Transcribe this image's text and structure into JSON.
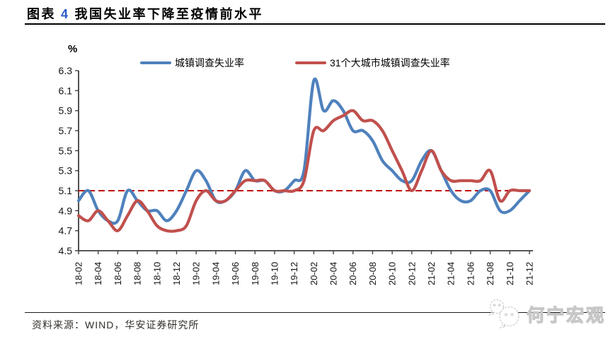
{
  "header": {
    "prefix": "图表",
    "number": "4",
    "title_rest": "我国失业率下降至疫情前水平"
  },
  "footer": {
    "source": "资料来源：WIND，华安证券研究所"
  },
  "watermark": {
    "text": "何宁宏观",
    "icon": "wechat-bubbles-icon"
  },
  "colors": {
    "series_blue": "#4F81BD",
    "series_red": "#C0504D",
    "reference_red": "#C00000",
    "title_number_blue": "#2A5CC8",
    "axis": "#404040"
  },
  "chart_data": {
    "type": "line",
    "title": "我国失业率下降至疫情前水平",
    "xlabel": "",
    "ylabel": "%",
    "ylim": [
      4.5,
      6.3
    ],
    "grid": false,
    "line_smoothing": true,
    "legend_position": "top",
    "y_ticks": [
      6.3,
      6.1,
      5.9,
      5.7,
      5.5,
      5.3,
      5.1,
      4.9,
      4.7,
      4.5
    ],
    "x_labels": [
      "18-02",
      "18-04",
      "18-06",
      "18-08",
      "18-10",
      "18-12",
      "19-02",
      "19-04",
      "19-06",
      "19-08",
      "19-10",
      "19-12",
      "20-02",
      "20-04",
      "20-06",
      "20-08",
      "20-10",
      "20-12",
      "21-02",
      "21-04",
      "21-06",
      "21-08",
      "21-10",
      "21-12"
    ],
    "x": [
      "18-02",
      "18-03",
      "18-04",
      "18-05",
      "18-06",
      "18-07",
      "18-08",
      "18-09",
      "18-10",
      "18-11",
      "18-12",
      "19-01",
      "19-02",
      "19-03",
      "19-04",
      "19-05",
      "19-06",
      "19-07",
      "19-08",
      "19-09",
      "19-10",
      "19-11",
      "19-12",
      "20-01",
      "20-02",
      "20-03",
      "20-04",
      "20-05",
      "20-06",
      "20-07",
      "20-08",
      "20-09",
      "20-10",
      "20-11",
      "20-12",
      "21-01",
      "21-02",
      "21-03",
      "21-04",
      "21-05",
      "21-06",
      "21-07",
      "21-08",
      "21-09",
      "21-10",
      "21-11",
      "21-12"
    ],
    "reference_line": {
      "value": 5.1,
      "style": "dashed",
      "color": "#C00000"
    },
    "series": [
      {
        "name": "城镇调查失业率",
        "color": "#4F81BD",
        "values": [
          5.0,
          5.1,
          4.9,
          4.8,
          4.8,
          5.1,
          5.0,
          4.9,
          4.9,
          4.8,
          4.9,
          5.1,
          5.3,
          5.2,
          5.0,
          5.0,
          5.1,
          5.3,
          5.2,
          5.2,
          5.1,
          5.1,
          5.2,
          5.3,
          6.2,
          5.9,
          6.0,
          5.9,
          5.7,
          5.7,
          5.6,
          5.4,
          5.3,
          5.2,
          5.2,
          5.4,
          5.5,
          5.3,
          5.1,
          5.0,
          5.0,
          5.1,
          5.1,
          4.9,
          4.9,
          5.0,
          5.1
        ]
      },
      {
        "name": "31个大城市城镇调查失业率",
        "color": "#C0504D",
        "values": [
          4.85,
          4.8,
          4.9,
          4.8,
          4.7,
          4.85,
          5.0,
          4.9,
          4.75,
          4.7,
          4.7,
          4.75,
          5.0,
          5.1,
          5.0,
          5.0,
          5.1,
          5.2,
          5.2,
          5.2,
          5.1,
          5.1,
          5.1,
          5.2,
          5.7,
          5.7,
          5.8,
          5.85,
          5.9,
          5.8,
          5.8,
          5.7,
          5.5,
          5.3,
          5.1,
          5.3,
          5.5,
          5.3,
          5.2,
          5.2,
          5.2,
          5.2,
          5.3,
          5.0,
          5.1,
          5.1,
          5.1
        ]
      }
    ]
  }
}
